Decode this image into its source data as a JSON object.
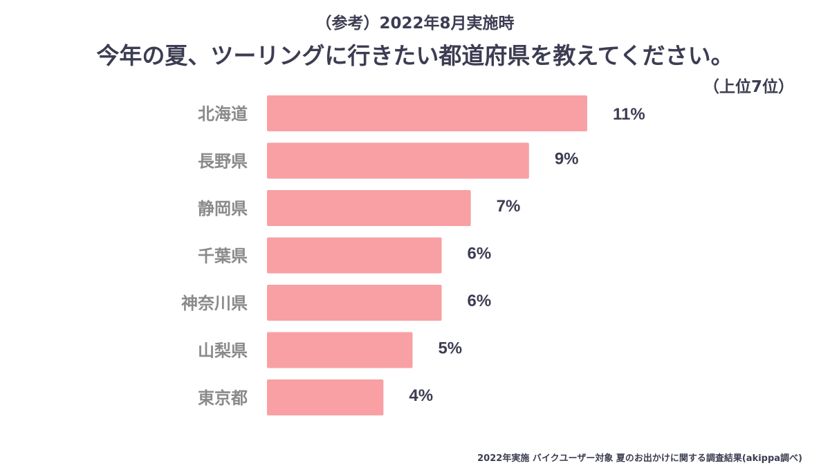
{
  "chart_data": {
    "type": "bar",
    "orientation": "horizontal",
    "subtitle": "（参考）2022年8月実施時",
    "title": "今年の夏、ツーリングに行きたい都道府県を教えてください。",
    "rank_note": "（上位7位）",
    "categories": [
      "北海道",
      "長野県",
      "静岡県",
      "千葉県",
      "神奈川県",
      "山梨県",
      "東京都"
    ],
    "values": [
      11,
      9,
      7,
      6,
      6,
      5,
      4
    ],
    "value_labels": [
      "11%",
      "9%",
      "7%",
      "6%",
      "6%",
      "5%",
      "4%"
    ],
    "unit": "%",
    "xlim": [
      0,
      11
    ],
    "legend": "none",
    "grid": false
  },
  "source": "2022年実施 バイクユーザー対象 夏のお出かけに関する調査結果(akippa調べ)",
  "colors": {
    "bar": "#f8a0a3",
    "category_text": "#8a8a8a",
    "title_text": "#3c3d52",
    "background": "#ffffff"
  }
}
